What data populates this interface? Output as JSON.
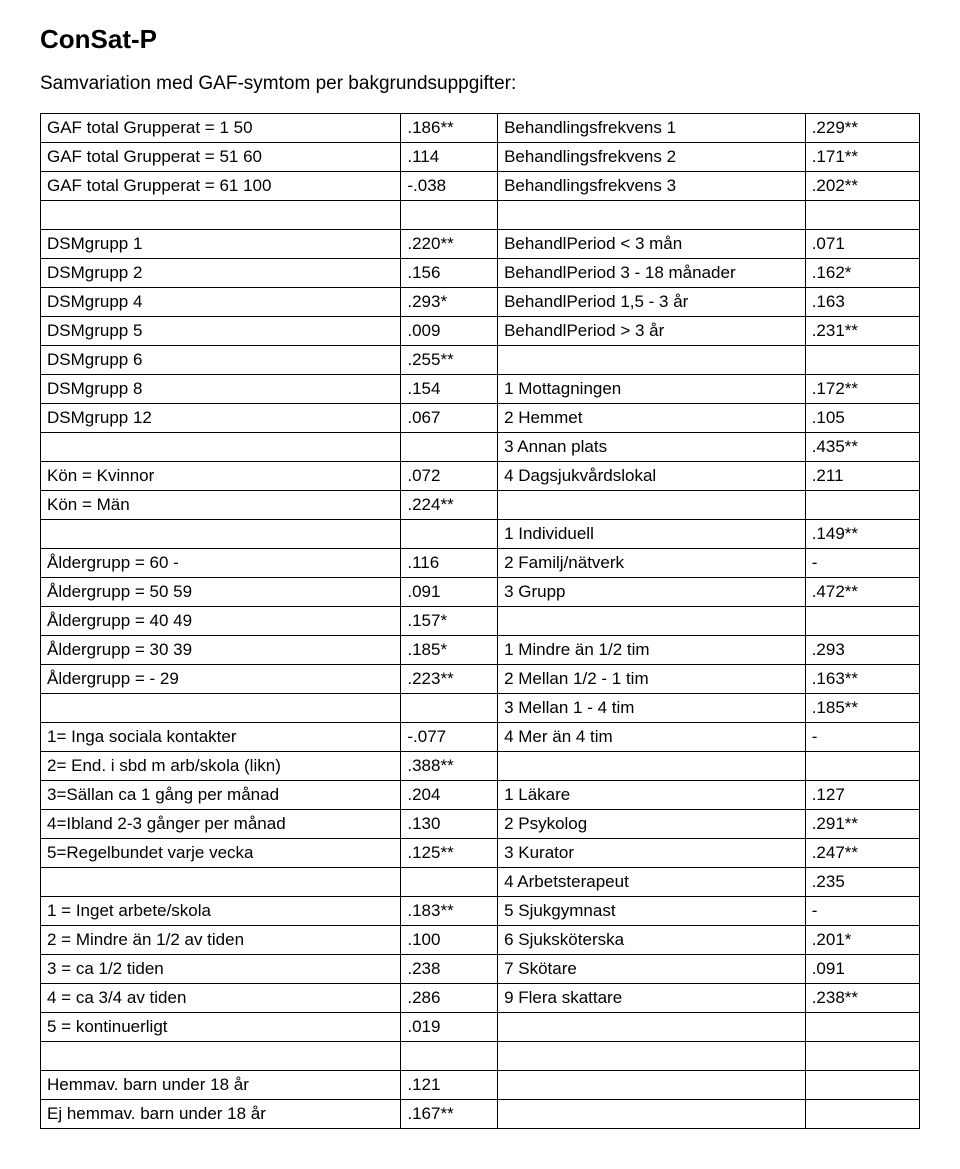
{
  "title": "ConSat-P",
  "subtitle": "Samvariation med GAF-symtom per bakgrundsuppgifter:",
  "rows": [
    [
      "GAF total Grupperat = 1 50",
      ".186**",
      "Behandlingsfrekvens 1",
      ".229**"
    ],
    [
      "GAF total Grupperat = 51 60",
      ".114",
      "Behandlingsfrekvens 2",
      ".171**"
    ],
    [
      "GAF total Grupperat = 61 100",
      "-.038",
      "Behandlingsfrekvens 3",
      ".202**"
    ],
    [
      "",
      "",
      "",
      ""
    ],
    [
      "DSMgrupp 1",
      ".220**",
      "BehandlPeriod  < 3 mån",
      ".071"
    ],
    [
      "DSMgrupp 2",
      ".156",
      "BehandlPeriod 3 - 18 månader",
      ".162*"
    ],
    [
      "DSMgrupp 4",
      ".293*",
      "BehandlPeriod 1,5 - 3 år",
      ".163"
    ],
    [
      "DSMgrupp 5",
      ".009",
      "BehandlPeriod  > 3 år",
      ".231**"
    ],
    [
      "DSMgrupp 6",
      ".255**",
      "",
      ""
    ],
    [
      "DSMgrupp 8",
      ".154",
      "1 Mottagningen",
      ".172**"
    ],
    [
      "DSMgrupp 12",
      ".067",
      "2 Hemmet",
      ".105"
    ],
    [
      "",
      "",
      "3 Annan plats",
      ".435**"
    ],
    [
      "Kön = Kvinnor",
      ".072",
      "4 Dagsjukvårdslokal",
      ".211"
    ],
    [
      "Kön = Män",
      ".224**",
      "",
      ""
    ],
    [
      "",
      "",
      "1 Individuell",
      ".149**"
    ],
    [
      "Åldergrupp = 60 -",
      ".116",
      "2 Familj/nätverk",
      "-"
    ],
    [
      "Åldergrupp = 50 59",
      ".091",
      "3 Grupp",
      ".472**"
    ],
    [
      "Åldergrupp = 40 49",
      ".157*",
      "",
      ""
    ],
    [
      "Åldergrupp = 30 39",
      ".185*",
      "1 Mindre än 1/2 tim",
      ".293"
    ],
    [
      "Åldergrupp =  - 29",
      ".223**",
      "2 Mellan 1/2 - 1 tim",
      ".163**"
    ],
    [
      "",
      "",
      "3 Mellan 1 - 4 tim",
      ".185**"
    ],
    [
      "1= Inga sociala kontakter",
      "-.077",
      "4 Mer än 4 tim",
      "-"
    ],
    [
      "2= End. i sbd m arb/skola (likn)",
      ".388**",
      "",
      ""
    ],
    [
      "3=Sällan ca 1 gång per månad",
      ".204",
      "1 Läkare",
      ".127"
    ],
    [
      "4=Ibland 2-3 gånger per månad",
      ".130",
      "2 Psykolog",
      ".291**"
    ],
    [
      "5=Regelbundet varje vecka",
      ".125**",
      "3 Kurator",
      ".247**"
    ],
    [
      "",
      "",
      "4 Arbetsterapeut",
      ".235"
    ],
    [
      "1 = Inget arbete/skola",
      ".183**",
      "5 Sjukgymnast",
      "-"
    ],
    [
      "2 = Mindre än 1/2 av tiden",
      ".100",
      "6 Sjuksköterska",
      ".201*"
    ],
    [
      "3 = ca 1/2 tiden",
      ".238",
      "7 Skötare",
      ".091"
    ],
    [
      "4 = ca 3/4 av tiden",
      ".286",
      "9 Flera skattare",
      ".238**"
    ],
    [
      "5 = kontinuerligt",
      ".019",
      "",
      ""
    ],
    [
      "",
      "",
      "",
      ""
    ],
    [
      "Hemmav. barn under 18 år",
      ".121",
      "",
      ""
    ],
    [
      "Ej hemmav. barn under 18 år",
      ".167**",
      "",
      ""
    ]
  ]
}
